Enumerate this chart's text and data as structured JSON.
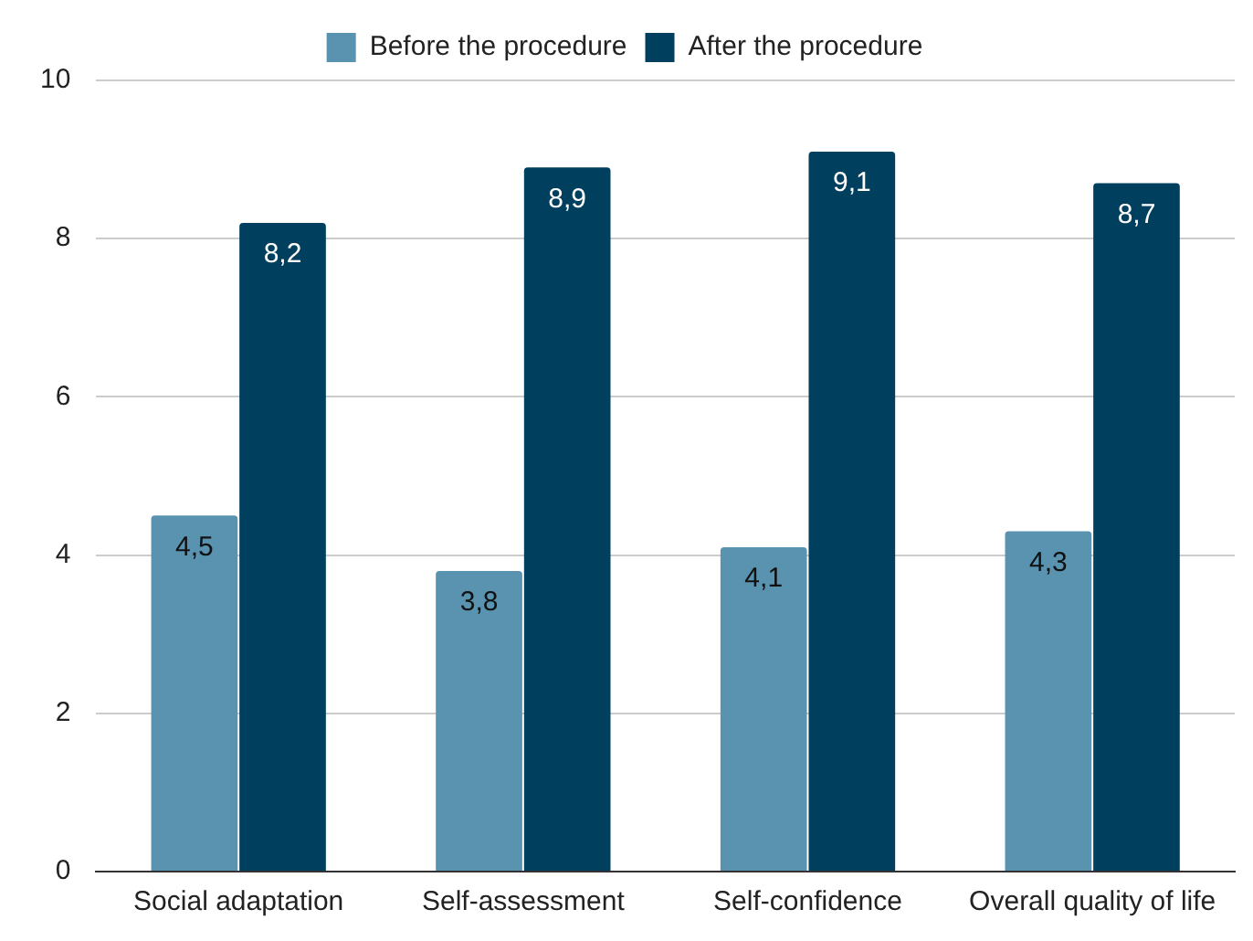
{
  "chart_data": {
    "type": "bar",
    "categories": [
      "Social adaptation",
      "Self-assessment",
      "Self-confidence",
      "Overall quality of life"
    ],
    "series": [
      {
        "name": "Before the procedure",
        "color": "#5a93b0",
        "values": [
          4.5,
          3.8,
          4.1,
          4.3
        ],
        "value_labels": [
          "4,5",
          "3,8",
          "4,1",
          "4,3"
        ]
      },
      {
        "name": "After the procedure",
        "color": "#003f5e",
        "values": [
          8.2,
          8.9,
          9.1,
          8.7
        ],
        "value_labels": [
          "8,2",
          "8,9",
          "9,1",
          "8,7"
        ]
      }
    ],
    "ylim": [
      0,
      10
    ],
    "yticks": [
      0,
      2,
      4,
      6,
      8,
      10
    ],
    "grid": "y",
    "legend": "top"
  }
}
